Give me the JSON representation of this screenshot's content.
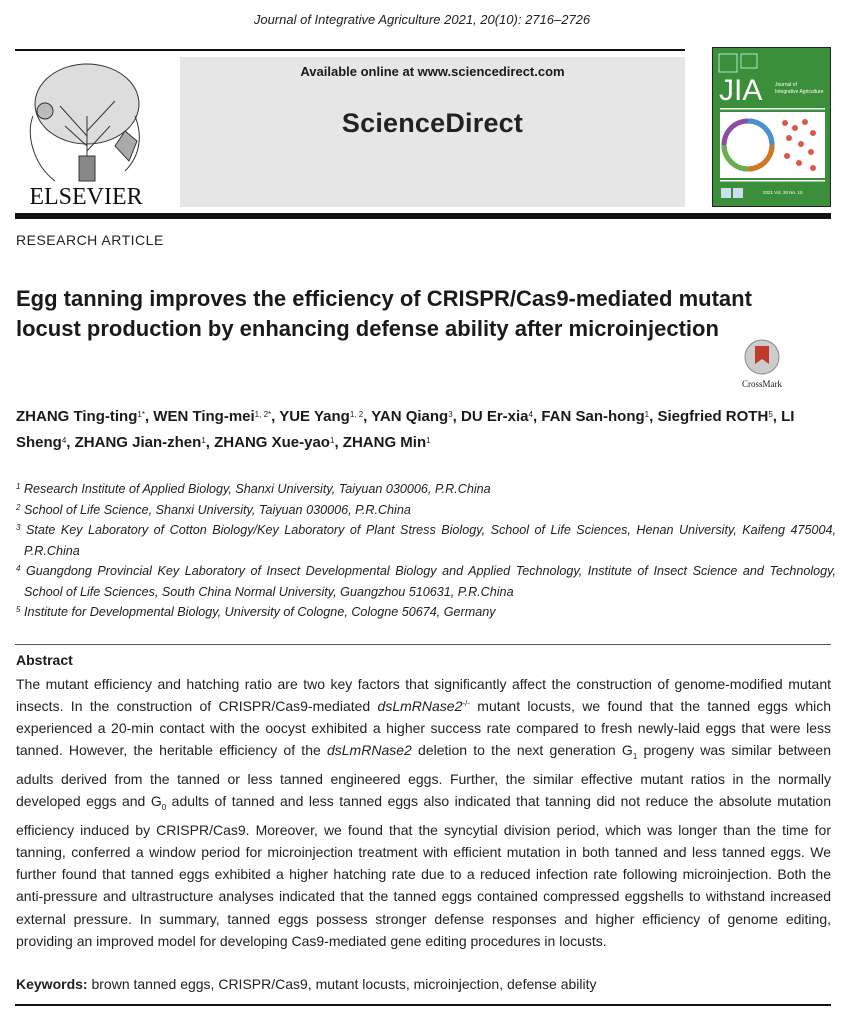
{
  "header": {
    "journal_citation": "Journal of Integrative Agriculture  2021, 20(10): 2716–2726",
    "available_online": "Available online at www.sciencedirect.com",
    "sciencedirect": "ScienceDirect",
    "publisher_logo": "ELSEVIER",
    "cover": {
      "abbrev": "JIA",
      "journal": "Journal of Integrative Agriculture",
      "issue": "2021  Vol. 20  No. 10",
      "color": "#3c8f3a"
    }
  },
  "article_type": "RESEARCH  ARTICLE",
  "title": "Egg tanning improves the efficiency of CRISPR/Cas9-mediated mutant locust production by enhancing defense ability after microinjection",
  "crossmark_label": "CrossMark",
  "authors": [
    {
      "name": "ZHANG Ting-ting",
      "sup": "1*"
    },
    {
      "name": "WEN Ting-mei",
      "sup": "1, 2*"
    },
    {
      "name": "YUE Yang",
      "sup": "1, 2"
    },
    {
      "name": "YAN Qiang",
      "sup": "3"
    },
    {
      "name": "DU Er-xia",
      "sup": "4"
    },
    {
      "name": "FAN San-hong",
      "sup": "1"
    },
    {
      "name": "Siegfried ROTH",
      "sup": "5"
    },
    {
      "name": "LI Sheng",
      "sup": "4"
    },
    {
      "name": "ZHANG Jian-zhen",
      "sup": "1"
    },
    {
      "name": "ZHANG Xue-yao",
      "sup": "1"
    },
    {
      "name": "ZHANG Min",
      "sup": "1"
    }
  ],
  "affiliations": [
    {
      "num": "1",
      "text": "Research Institute of Applied Biology, Shanxi University, Taiyuan 030006, P.R.China"
    },
    {
      "num": "2",
      "text": "School of Life Science, Shanxi University, Taiyuan 030006, P.R.China"
    },
    {
      "num": "3",
      "text": "State Key Laboratory of Cotton Biology/Key Laboratory of Plant Stress Biology, School of Life Sciences, Henan University, Kaifeng 475004, P.R.China"
    },
    {
      "num": "4",
      "text": "Guangdong Provincial Key Laboratory of Insect Developmental Biology and Applied Technology, Institute of Insect Science and Technology, School of Life Sciences, South China Normal University, Guangzhou 510631, P.R.China"
    },
    {
      "num": "5",
      "text": "Institute for Developmental Biology, University of Cologne, Cologne 50674, Germany"
    }
  ],
  "abstract": {
    "heading": "Abstract",
    "segments": [
      {
        "t": "The mutant efficiency and hatching ratio are two key factors that significantly affect the construction of genome-modified mutant insects.  In the construction of CRISPR/Cas9-mediated "
      },
      {
        "t": "dsLmRNase2",
        "s": "i"
      },
      {
        "t": "-/-",
        "s": "sup"
      },
      {
        "t": " mutant locusts, we found that the tanned eggs which experienced a 20-min contact with the oocyst exhibited a higher success rate compared to fresh newly-laid eggs that were less tanned.  However, the heritable efficiency of the "
      },
      {
        "t": "dsLmRNase2",
        "s": "i"
      },
      {
        "t": " deletion to the next generation G"
      },
      {
        "t": "1",
        "s": "sub"
      },
      {
        "t": " progeny was similar between adults derived from the tanned or less tanned engineered eggs.  Further, the similar effective mutant ratios in the normally developed eggs and G"
      },
      {
        "t": "0",
        "s": "sub"
      },
      {
        "t": " adults of tanned and less tanned eggs also indicated that tanning did not reduce the absolute mutation efficiency induced by CRISPR/Cas9.  Moreover, we found that the syncytial division period, which was longer than the time for tanning, conferred a window period for microinjection treatment with efficient mutation in both tanned and less tanned eggs.  We further found that tanned eggs exhibited a higher hatching rate due to a reduced infection rate following microinjection.  Both the anti-pressure and ultrastructure analyses indicated that the tanned eggs contained compressed eggshells to withstand increased external pressure.  In summary, tanned eggs possess stronger defense responses and higher efficiency of genome editing, providing an improved model for developing Cas9-mediated gene editing procedures in locusts."
      }
    ]
  },
  "keywords": {
    "label": "Keywords:",
    "text": "brown tanned eggs, CRISPR/Cas9, mutant locusts, microinjection, defense ability"
  }
}
